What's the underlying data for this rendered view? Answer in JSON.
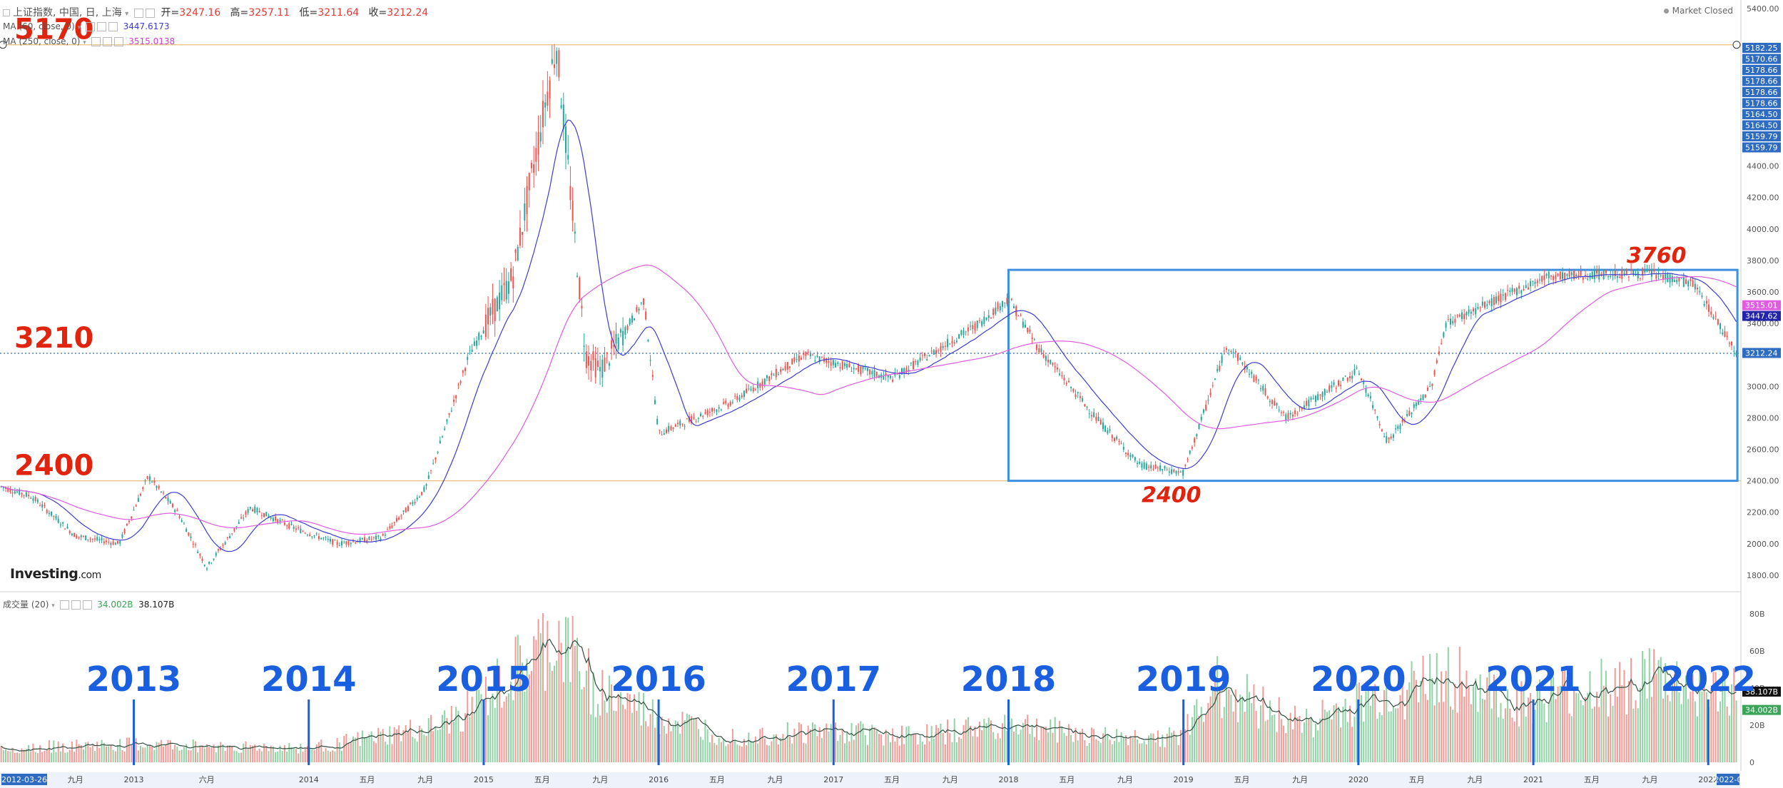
{
  "header": {
    "symbol": "上证指数, 中国, 日, 上海",
    "open_label": "开=",
    "open": "3247.16",
    "high_label": "高=",
    "high": "3257.11",
    "low_label": "低=",
    "low": "3211.64",
    "close_label": "收=",
    "close": "3212.24",
    "ma60_label": "MA (60, close, 0)",
    "ma60_value": "3447.6173",
    "ma250_label": "MA (250, close, 0)",
    "ma250_value": "3515.0138",
    "market_status": "Market Closed",
    "volume_label": "成交量 (20)",
    "volume_value": "34.002B",
    "volume_ma_value": "38.107B",
    "logo_main": "Investing",
    "logo_suffix": ".com"
  },
  "colors": {
    "up": "#26a69a",
    "down": "#ef5350",
    "ma60": "#3d3dd4",
    "ma250": "#e05ce0",
    "annotation_red": "#e0240e",
    "annotation_blue": "#1a5fe0",
    "box": "#3f8fe0",
    "level_line": "#e8c07a"
  },
  "chart_data": {
    "type": "candlestick",
    "x_start": "2012-03-26",
    "x_end": "2022-03",
    "ylim": [
      1700,
      5400
    ],
    "y_ticks": [
      "5400.00",
      "4400.00",
      "4200.00",
      "4000.00",
      "3800.00",
      "3600.00",
      "3400.00",
      "3200.00",
      "3000.00",
      "2800.00",
      "2600.00",
      "2400.00",
      "2200.00",
      "2000.00",
      "1800.00"
    ],
    "price_tags": [
      "5182.25",
      "5170.66",
      "5178.66",
      "5178.66",
      "5178.66",
      "5178.66",
      "5164.50",
      "5164.50",
      "5159.79",
      "5159.79"
    ],
    "last_price_tags": {
      "ma250": "3515.01",
      "ma60": "3447.62",
      "close": "3212.24"
    },
    "x_tick_labels": [
      {
        "date": "2012-03-26",
        "label": "2012-03-26"
      },
      {
        "date": "2012-09",
        "label": "九月"
      },
      {
        "date": "2013-01",
        "label": "2013"
      },
      {
        "date": "2013-06",
        "label": "六月"
      },
      {
        "date": "2014-01",
        "label": "2014"
      },
      {
        "date": "2014-05",
        "label": "五月"
      },
      {
        "date": "2014-09",
        "label": "九月"
      },
      {
        "date": "2015-01",
        "label": "2015"
      },
      {
        "date": "2015-05",
        "label": "五月"
      },
      {
        "date": "2015-09",
        "label": "九月"
      },
      {
        "date": "2016-01",
        "label": "2016"
      },
      {
        "date": "2016-05",
        "label": "五月"
      },
      {
        "date": "2016-09",
        "label": "九月"
      },
      {
        "date": "2017-01",
        "label": "2017"
      },
      {
        "date": "2017-05",
        "label": "五月"
      },
      {
        "date": "2017-09",
        "label": "九月"
      },
      {
        "date": "2018-01",
        "label": "2018"
      },
      {
        "date": "2018-05",
        "label": "五月"
      },
      {
        "date": "2018-09",
        "label": "九月"
      },
      {
        "date": "2019-01",
        "label": "2019"
      },
      {
        "date": "2019-05",
        "label": "五月"
      },
      {
        "date": "2019-09",
        "label": "九月"
      },
      {
        "date": "2020-01",
        "label": "2020"
      },
      {
        "date": "2020-05",
        "label": "五月"
      },
      {
        "date": "2020-09",
        "label": "九月"
      },
      {
        "date": "2021-01",
        "label": "2021"
      },
      {
        "date": "2021-05",
        "label": "五月"
      },
      {
        "date": "2021-09",
        "label": "九月"
      },
      {
        "date": "2022-01",
        "label": "2022"
      },
      {
        "date": "2022-03",
        "label": "2022-0"
      }
    ],
    "price_path": [
      [
        "2012-03",
        2390
      ],
      [
        "2012-06",
        2300
      ],
      [
        "2012-09",
        2050
      ],
      [
        "2012-12",
        2000
      ],
      [
        "2013-02",
        2430
      ],
      [
        "2013-04",
        2200
      ],
      [
        "2013-06",
        1850
      ],
      [
        "2013-09",
        2230
      ],
      [
        "2013-12",
        2100
      ],
      [
        "2014-03",
        2000
      ],
      [
        "2014-06",
        2040
      ],
      [
        "2014-09",
        2350
      ],
      [
        "2014-12",
        3200
      ],
      [
        "2015-03",
        3700
      ],
      [
        "2015-06",
        5178
      ],
      [
        "2015-08",
        3200
      ],
      [
        "2015-09",
        3100
      ],
      [
        "2015-12",
        3550
      ],
      [
        "2016-01",
        2700
      ],
      [
        "2016-06",
        2900
      ],
      [
        "2016-11",
        3200
      ],
      [
        "2017-05",
        3050
      ],
      [
        "2017-11",
        3400
      ],
      [
        "2018-01",
        3560
      ],
      [
        "2018-03",
        3250
      ],
      [
        "2018-07",
        2800
      ],
      [
        "2018-10",
        2500
      ],
      [
        "2019-01",
        2450
      ],
      [
        "2019-04",
        3270
      ],
      [
        "2019-08",
        2800
      ],
      [
        "2020-01",
        3100
      ],
      [
        "2020-03",
        2650
      ],
      [
        "2020-06",
        3000
      ],
      [
        "2020-07",
        3400
      ],
      [
        "2021-02",
        3700
      ],
      [
        "2021-09",
        3720
      ],
      [
        "2021-12",
        3650
      ],
      [
        "2022-03",
        3210
      ]
    ],
    "volume_max": "80B",
    "volume_ticks": [
      "80B",
      "60B",
      "40B",
      "20B",
      "0"
    ],
    "volume_path": [
      [
        "2012-03",
        8
      ],
      [
        "2013-01",
        10
      ],
      [
        "2014-01",
        8
      ],
      [
        "2014-10",
        20
      ],
      [
        "2015-01",
        35
      ],
      [
        "2015-06",
        70
      ],
      [
        "2015-09",
        40
      ],
      [
        "2016-01",
        25
      ],
      [
        "2016-06",
        15
      ],
      [
        "2017-01",
        18
      ],
      [
        "2017-07",
        15
      ],
      [
        "2018-01",
        22
      ],
      [
        "2018-08",
        14
      ],
      [
        "2019-01",
        15
      ],
      [
        "2019-03",
        45
      ],
      [
        "2019-09",
        22
      ],
      [
        "2020-02",
        35
      ],
      [
        "2020-07",
        50
      ],
      [
        "2020-12",
        32
      ],
      [
        "2021-03",
        38
      ],
      [
        "2021-09",
        48
      ],
      [
        "2022-01",
        38
      ],
      [
        "2022-03",
        38
      ]
    ],
    "levels": [
      {
        "value": 5170,
        "label": "5170"
      },
      {
        "value": 3210,
        "label": "3210"
      },
      {
        "value": 2400,
        "label": "2400"
      }
    ],
    "range_box": {
      "x_from": "2018-01",
      "x_to": "2022-03",
      "y_from": 2400,
      "y_to": 3740,
      "top_label": "3760",
      "bottom_label": "2400"
    },
    "year_markers": [
      "2013",
      "2014",
      "2015",
      "2016",
      "2017",
      "2018",
      "2019",
      "2020",
      "2021",
      "2022"
    ]
  }
}
